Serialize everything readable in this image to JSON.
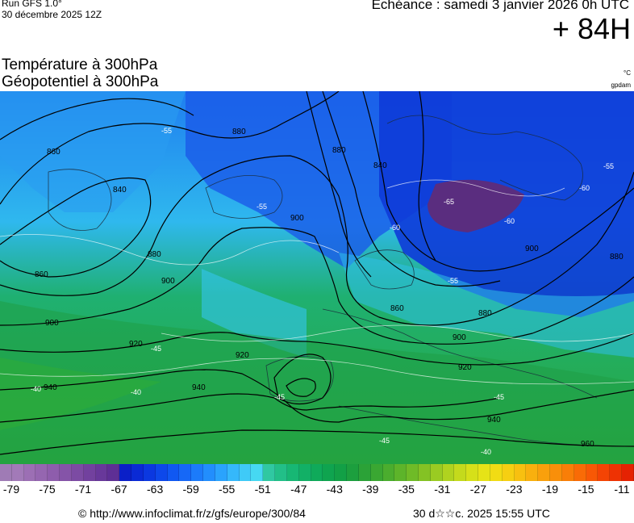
{
  "header": {
    "run_line1": "Run GFS 1.0°",
    "run_line2": "30 décembre 2025 12Z",
    "echeance": "Echéance : samedi 3 janvier 2026 0h UTC",
    "lead": "+ 84H"
  },
  "titles": {
    "line1": "Température à 300hPa",
    "line2": "Géopotentiel à 300hPa",
    "unit_temp": "°C",
    "unit_geo": "gpdam"
  },
  "map": {
    "geopotential_labels": [
      "860",
      "860",
      "860",
      "880",
      "880",
      "880",
      "880",
      "880",
      "900",
      "900",
      "900",
      "900",
      "900",
      "920",
      "920",
      "920",
      "940",
      "940",
      "940",
      "960",
      "840",
      "840"
    ],
    "temperature_labels": [
      "-55",
      "-55",
      "-55",
      "-55",
      "-60",
      "-60",
      "-60",
      "-65",
      "-45",
      "-45",
      "-45",
      "-40",
      "-40",
      "-45",
      "-40"
    ]
  },
  "colorbar": {
    "colors": [
      "#9f7bb5",
      "#a27ab8",
      "#9c6fb4",
      "#9566b0",
      "#8e5dac",
      "#8554a8",
      "#7c4ba3",
      "#72419e",
      "#68389a",
      "#5e2f95",
      "#0a1fc8",
      "#0a2ad5",
      "#0b38e0",
      "#0d48ea",
      "#1058f2",
      "#1668f7",
      "#1c7bfa",
      "#228efd",
      "#2aa3fd",
      "#35b8fb",
      "#3fcaf7",
      "#46d8f2",
      "#30c8a2",
      "#22bf88",
      "#17b774",
      "#12b066",
      "#0faa5a",
      "#0fa44f",
      "#12a046",
      "#1c9f3e",
      "#2ba237",
      "#3aa732",
      "#4bad2e",
      "#5db42a",
      "#6fbb27",
      "#84c224",
      "#9acb22",
      "#b0d31f",
      "#c4da1c",
      "#d6e019",
      "#e6e317",
      "#f1dc14",
      "#f6cf12",
      "#f8c010",
      "#f9b00e",
      "#f9a00c",
      "#f98f0a",
      "#f97e08",
      "#f96b06",
      "#f85805",
      "#f44404",
      "#ee3203",
      "#e52202"
    ],
    "tick_labels": [
      "-79",
      "-75",
      "-71",
      "-67",
      "-63",
      "-59",
      "-55",
      "-51",
      "-47",
      "-43",
      "-39",
      "-35",
      "-31",
      "-27",
      "-23",
      "-19",
      "-15",
      "-11"
    ]
  },
  "footer": {
    "source": "© http://www.infoclimat.fr/z/gfs/europe/300/84",
    "timestamp": "30 d☆☆c. 2025 15:55 UTC"
  }
}
